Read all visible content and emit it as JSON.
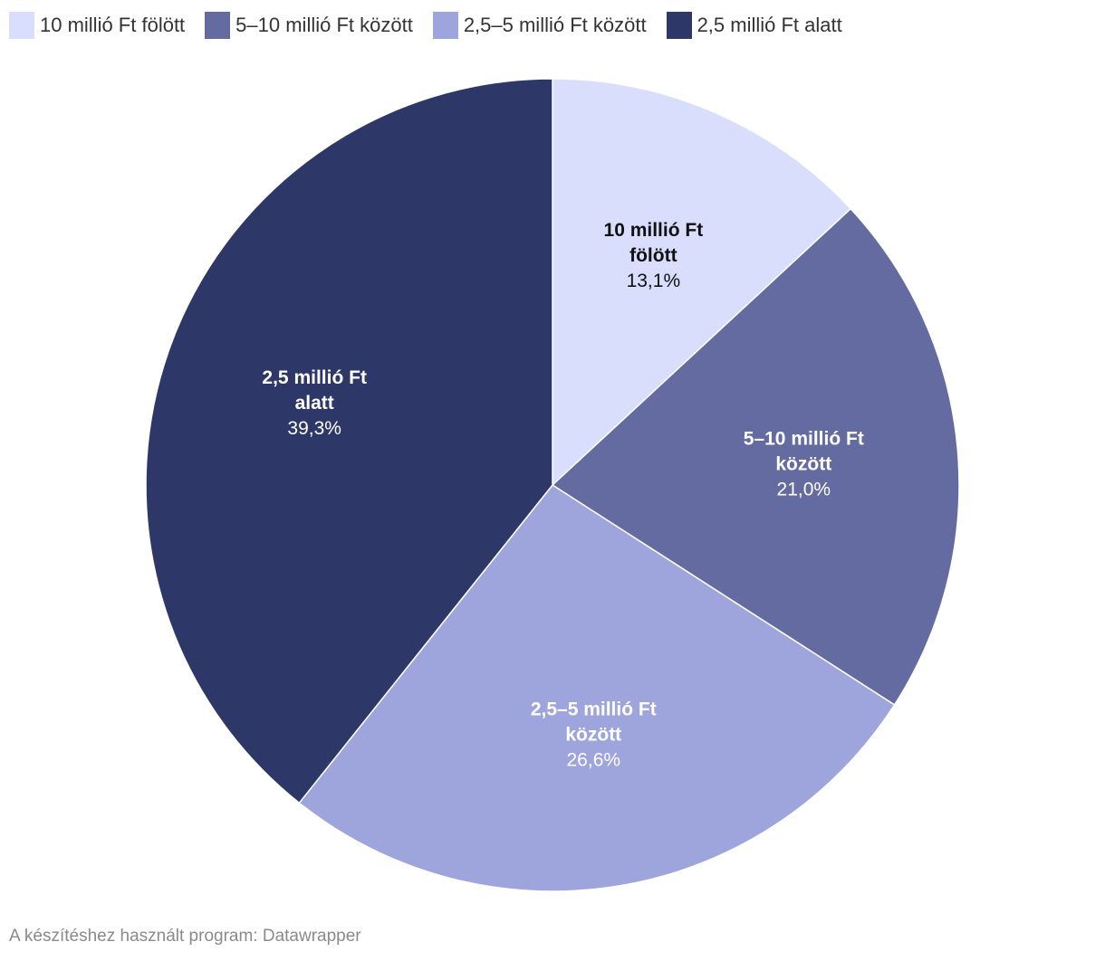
{
  "chart_data": {
    "type": "pie",
    "slices": [
      {
        "label": "10 millió Ft fölött",
        "label_lines": [
          "10 millió Ft",
          "fölött"
        ],
        "value": 13.1,
        "value_text": "13,1%",
        "color": "#d8defc",
        "text_color": "#111111"
      },
      {
        "label": "5–10 millió Ft között",
        "label_lines": [
          "5–10 millió Ft",
          "között"
        ],
        "value": 21.0,
        "value_text": "21,0%",
        "color": "#636ba0",
        "text_color": "#ffffff"
      },
      {
        "label": "2,5–5 millió Ft között",
        "label_lines": [
          "2,5–5 millió Ft",
          "között"
        ],
        "value": 26.6,
        "value_text": "26,6%",
        "color": "#9ea4dc",
        "text_color": "#ffffff"
      },
      {
        "label": "2,5 millió Ft alatt",
        "label_lines": [
          "2,5 millió Ft",
          "alatt"
        ],
        "value": 39.3,
        "value_text": "39,3%",
        "color": "#2d3768",
        "text_color": "#ffffff"
      }
    ],
    "legend": {
      "position": "top-left"
    }
  },
  "footer": {
    "credit": "A készítéshez használt program: Datawrapper"
  }
}
